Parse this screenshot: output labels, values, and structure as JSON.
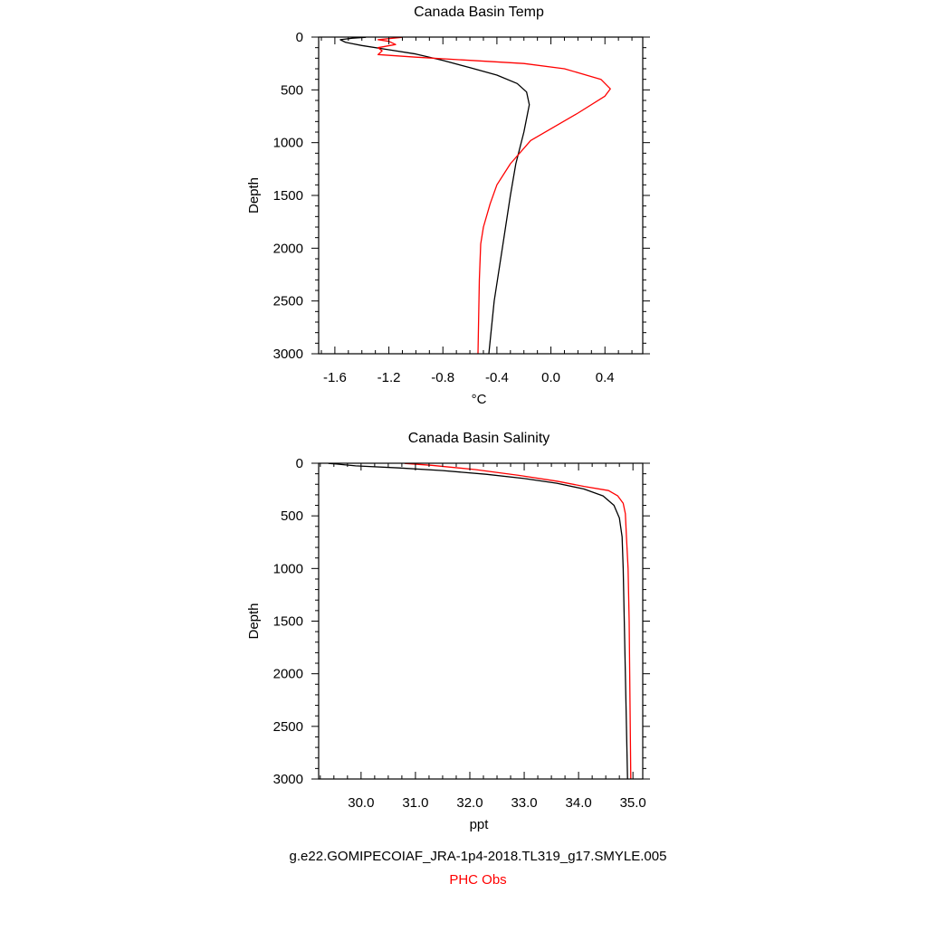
{
  "chart_data": [
    {
      "type": "line",
      "title": "Canada Basin Temp",
      "xlabel": "°C",
      "ylabel": "Depth",
      "xlim": [
        -1.72,
        0.68
      ],
      "ylim": [
        3000,
        0
      ],
      "y_inverted": true,
      "xticks": [
        -1.6,
        -1.2,
        -0.8,
        -0.4,
        0.0,
        0.4
      ],
      "xtick_labels": [
        "-1.6",
        "-1.2",
        "-0.8",
        "-0.4",
        "0.0",
        "0.4"
      ],
      "yticks": [
        0,
        500,
        1000,
        1500,
        2000,
        2500,
        3000
      ],
      "ytick_labels": [
        "0",
        "500",
        "1000",
        "1500",
        "2000",
        "2500",
        "3000"
      ],
      "grid": false,
      "series": [
        {
          "color": "#000000",
          "points": [
            [
              -1.37,
              2
            ],
            [
              -1.47,
              10
            ],
            [
              -1.56,
              25
            ],
            [
              -1.52,
              50
            ],
            [
              -1.48,
              60
            ],
            [
              -1.4,
              80
            ],
            [
              -1.2,
              120
            ],
            [
              -1.0,
              160
            ],
            [
              -0.8,
              220
            ],
            [
              -0.6,
              290
            ],
            [
              -0.4,
              360
            ],
            [
              -0.25,
              440
            ],
            [
              -0.18,
              520
            ],
            [
              -0.16,
              640
            ],
            [
              -0.2,
              900
            ],
            [
              -0.26,
              1200
            ],
            [
              -0.3,
              1500
            ],
            [
              -0.36,
              2000
            ],
            [
              -0.42,
              2500
            ],
            [
              -0.46,
              3000
            ]
          ]
        },
        {
          "color": "#ff0000",
          "points": [
            [
              -1.1,
              2
            ],
            [
              -1.28,
              25
            ],
            [
              -1.2,
              40
            ],
            [
              -1.15,
              70
            ],
            [
              -1.28,
              100
            ],
            [
              -1.25,
              130
            ],
            [
              -1.28,
              165
            ],
            [
              -1.0,
              190
            ],
            [
              -0.6,
              220
            ],
            [
              -0.2,
              250
            ],
            [
              0.1,
              300
            ],
            [
              0.37,
              400
            ],
            [
              0.44,
              490
            ],
            [
              0.4,
              560
            ],
            [
              0.2,
              720
            ],
            [
              -0.15,
              980
            ],
            [
              -0.3,
              1200
            ],
            [
              -0.4,
              1400
            ],
            [
              -0.45,
              1580
            ],
            [
              -0.5,
              1800
            ],
            [
              -0.52,
              1960
            ],
            [
              -0.53,
              2300
            ],
            [
              -0.54,
              3000
            ]
          ]
        }
      ]
    },
    {
      "type": "line",
      "title": "Canada Basin Salinity",
      "xlabel": "ppt",
      "ylabel": "Depth",
      "xlim": [
        29.22,
        35.18
      ],
      "ylim": [
        3000,
        0
      ],
      "y_inverted": true,
      "xticks": [
        30.0,
        31.0,
        32.0,
        33.0,
        34.0,
        35.0
      ],
      "xtick_labels": [
        "30.0",
        "31.0",
        "32.0",
        "33.0",
        "34.0",
        "35.0"
      ],
      "yticks": [
        0,
        500,
        1000,
        1500,
        2000,
        2500,
        3000
      ],
      "ytick_labels": [
        "0",
        "500",
        "1000",
        "1500",
        "2000",
        "2500",
        "3000"
      ],
      "grid": false,
      "series": [
        {
          "color": "#000000",
          "points": [
            [
              29.4,
              2
            ],
            [
              29.55,
              8
            ],
            [
              29.9,
              25
            ],
            [
              30.7,
              45
            ],
            [
              31.5,
              70
            ],
            [
              32.3,
              105
            ],
            [
              33.0,
              145
            ],
            [
              33.6,
              190
            ],
            [
              34.1,
              245
            ],
            [
              34.45,
              310
            ],
            [
              34.65,
              400
            ],
            [
              34.75,
              520
            ],
            [
              34.8,
              700
            ],
            [
              34.82,
              1000
            ],
            [
              34.84,
              1500
            ],
            [
              34.86,
              2000
            ],
            [
              34.88,
              2500
            ],
            [
              34.9,
              3000
            ]
          ]
        },
        {
          "color": "#ff0000",
          "points": [
            [
              30.8,
              2
            ],
            [
              31.3,
              20
            ],
            [
              32.1,
              60
            ],
            [
              32.9,
              115
            ],
            [
              33.6,
              170
            ],
            [
              34.1,
              220
            ],
            [
              34.55,
              260
            ],
            [
              34.72,
              310
            ],
            [
              34.82,
              380
            ],
            [
              34.86,
              480
            ],
            [
              34.88,
              700
            ],
            [
              34.91,
              1000
            ],
            [
              34.93,
              1500
            ],
            [
              34.94,
              2000
            ],
            [
              34.95,
              2500
            ],
            [
              34.96,
              3000
            ]
          ]
        }
      ]
    }
  ],
  "legend": {
    "entries": [
      {
        "label": "g.e22.GOMIPECOIAF_JRA-1p4-2018.TL319_g17.SMYLE.005",
        "color": "#000000"
      },
      {
        "label": "PHC Obs",
        "color": "#ff0000"
      }
    ]
  }
}
